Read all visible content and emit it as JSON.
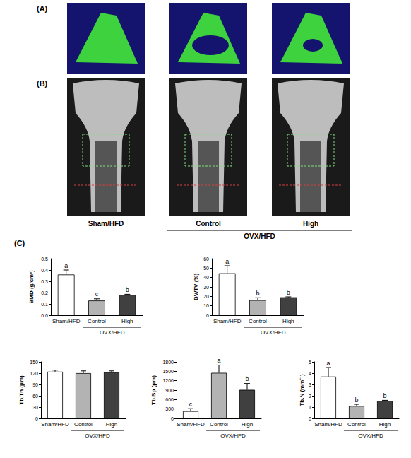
{
  "figure": {
    "panel_labels": [
      "(A)",
      "(B)",
      "(C)"
    ],
    "image_columns": [
      "Sham/HFD",
      "Control",
      "High"
    ],
    "image_group": {
      "label": "OVX/HFD",
      "columns": [
        "Control",
        "High"
      ]
    }
  },
  "chart_data": [
    {
      "type": "bar",
      "ylabel": "BMD (g/cm³)",
      "categories": [
        "Sham/HFD",
        "Control",
        "High"
      ],
      "values": [
        0.36,
        0.13,
        0.18
      ],
      "errors": [
        0.04,
        0.015,
        0.005
      ],
      "letters": [
        "a",
        "c",
        "b"
      ],
      "colors": [
        "#ffffff",
        "#b3b3b3",
        "#404040"
      ],
      "group": {
        "label": "OVX/HFD",
        "categories": [
          "Control",
          "High"
        ]
      },
      "ylim": [
        0,
        0.5
      ],
      "yticks": [
        {
          "value": 0,
          "label": "0.0"
        },
        0.1,
        0.2,
        0.3,
        0.4,
        0.5
      ],
      "grid": false
    },
    {
      "type": "bar",
      "ylabel": "BV/TV (%)",
      "categories": [
        "Sham/HFD",
        "Control",
        "High"
      ],
      "values": [
        44.5,
        16,
        19
      ],
      "errors": [
        8,
        2.5,
        0.5
      ],
      "letters": [
        "a",
        "b",
        "b"
      ],
      "colors": [
        "#ffffff",
        "#b3b3b3",
        "#404040"
      ],
      "group": {
        "label": "OVX/HFD",
        "categories": [
          "Control",
          "High"
        ]
      },
      "ylim": [
        0,
        60
      ],
      "yticks": [
        0,
        10,
        20,
        30,
        40,
        50,
        60
      ],
      "grid": false
    },
    {
      "type": "bar",
      "ylabel": "Tb.Th (μm)",
      "categories": [
        "Sham/HFD",
        "Control",
        "High"
      ],
      "values": [
        124,
        120,
        123
      ],
      "errors": [
        4,
        6,
        3
      ],
      "colors": [
        "#ffffff",
        "#b3b3b3",
        "#404040"
      ],
      "group": {
        "label": "OVX/HFD",
        "categories": [
          "Control",
          "High"
        ]
      },
      "ylim": [
        0,
        150
      ],
      "yticks": [
        0,
        30,
        60,
        90,
        120,
        150
      ],
      "grid": false
    },
    {
      "type": "bar",
      "ylabel": "Tb.Sp (μm)",
      "categories": [
        "Sham/HFD",
        "Control",
        "High"
      ],
      "values": [
        230,
        1450,
        910
      ],
      "errors": [
        80,
        250,
        200
      ],
      "letters": [
        "c",
        "a",
        "b"
      ],
      "colors": [
        "#ffffff",
        "#b3b3b3",
        "#404040"
      ],
      "group": {
        "label": "OVX/HFD",
        "categories": [
          "Control",
          "High"
        ]
      },
      "ylim": [
        0,
        1800
      ],
      "yticks": [
        0,
        300,
        600,
        900,
        1200,
        1500,
        1800
      ],
      "grid": false
    },
    {
      "type": "bar",
      "ylabel": "Tb.N (mm⁻¹)",
      "categories": [
        "Sham/HFD",
        "Control",
        "High"
      ],
      "values": [
        3.7,
        1.1,
        1.55
      ],
      "errors": [
        0.8,
        0.15,
        0.05
      ],
      "letters": [
        "a",
        "b",
        "b"
      ],
      "colors": [
        "#ffffff",
        "#b3b3b3",
        "#404040"
      ],
      "group": {
        "label": "OVX/HFD",
        "categories": [
          "Control",
          "High"
        ]
      },
      "ylim": [
        0,
        5
      ],
      "yticks": [
        0,
        1,
        2,
        3,
        4,
        5
      ],
      "grid": false
    }
  ]
}
